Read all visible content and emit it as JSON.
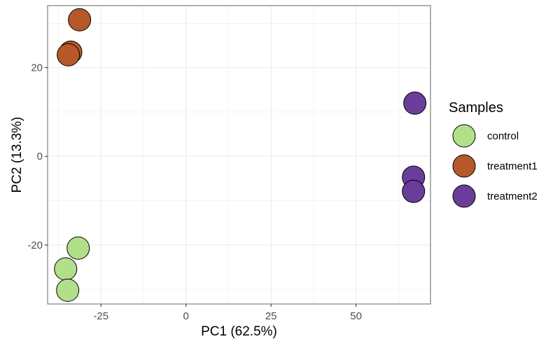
{
  "chart_data": {
    "type": "scatter",
    "title": "",
    "xlabel": "PC1 (62.5%)",
    "ylabel": "PC2 (13.3%)",
    "xlim": [
      -40.7,
      71.9
    ],
    "ylim": [
      -33.3,
      34.0
    ],
    "xticks": [
      -25,
      0,
      25,
      50
    ],
    "yticks": [
      -20,
      0,
      20
    ],
    "grid": true,
    "legend": {
      "title": "Samples",
      "position": "right",
      "entries": [
        {
          "label": "control",
          "color": "#b2df8a"
        },
        {
          "label": "treatment1",
          "color": "#b5592a"
        },
        {
          "label": "treatment2",
          "color": "#6a3d9a"
        }
      ]
    },
    "series": [
      {
        "name": "control",
        "color": "#b2df8a",
        "points": [
          [
            -31.7,
            -20.7
          ],
          [
            -35.4,
            -25.4
          ],
          [
            -34.8,
            -30.2
          ]
        ]
      },
      {
        "name": "treatment1",
        "color": "#b5592a",
        "points": [
          [
            -31.3,
            30.8
          ],
          [
            -33.9,
            23.5
          ],
          [
            -34.6,
            22.9
          ]
        ]
      },
      {
        "name": "treatment2",
        "color": "#6a3d9a",
        "points": [
          [
            67.3,
            12.0
          ],
          [
            66.9,
            -4.7
          ],
          [
            66.9,
            -7.9
          ]
        ]
      }
    ]
  }
}
